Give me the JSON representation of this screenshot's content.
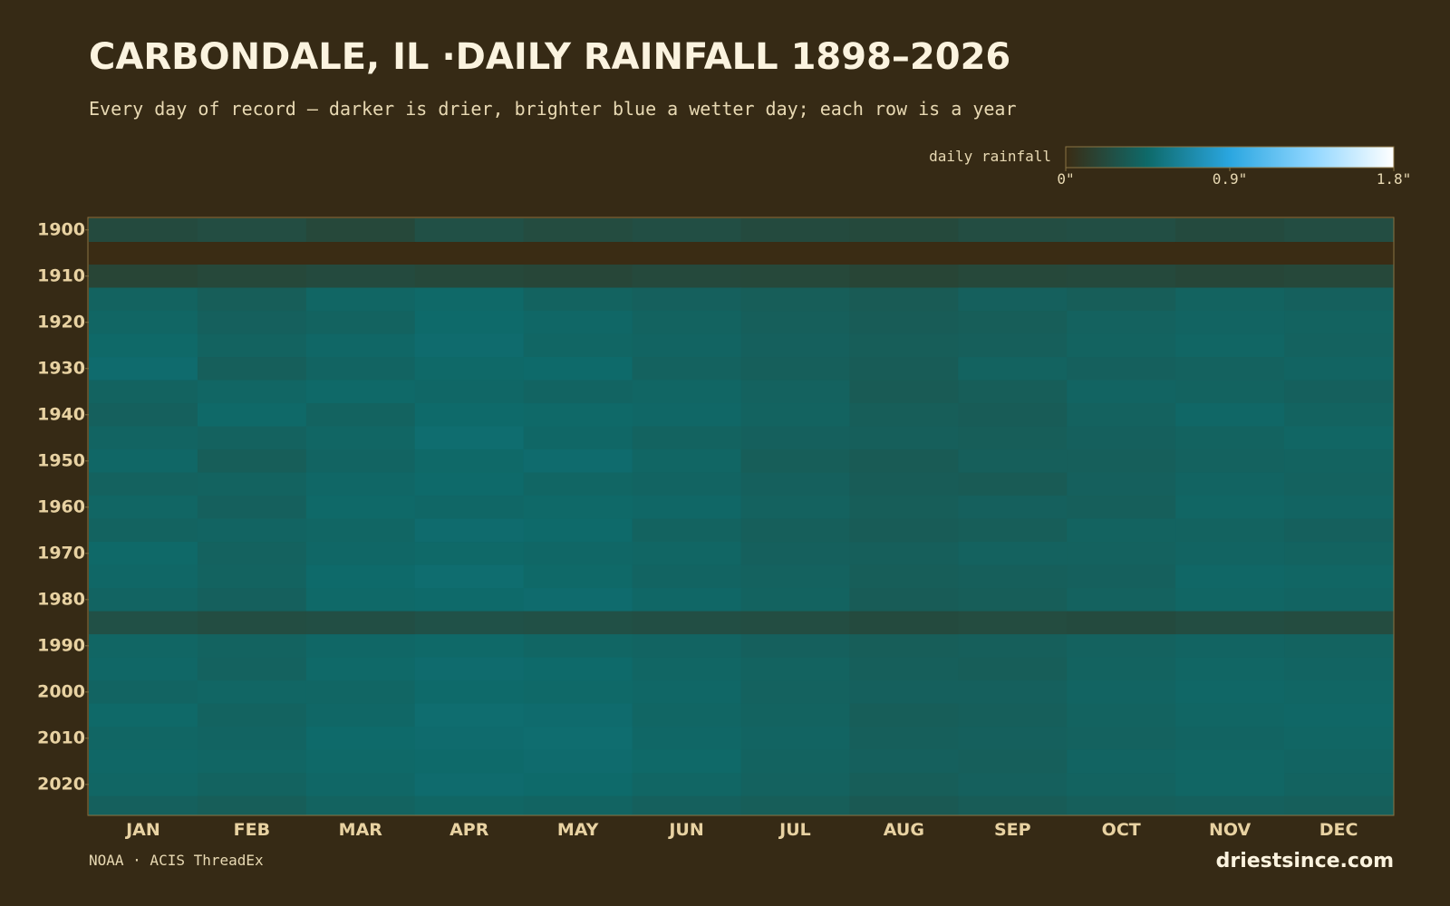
{
  "chart_data": {
    "type": "heatmap",
    "title": "CARBONDALE, IL ·DAILY RAINFALL 1898–2026",
    "subtitle": "Every day of record — darker is drier, brighter blue a wetter day; each row is a year",
    "legend_title": "daily rainfall",
    "colorscale": [
      "#3a2c14",
      "#0e6a6a",
      "#2aa6e0",
      "#8fd6ff",
      "#ffffff"
    ],
    "clim": [
      0,
      1.8
    ],
    "cticks": [
      {
        "value": 0,
        "label": "0\""
      },
      {
        "value": 0.9,
        "label": "0.9\""
      },
      {
        "value": 1.8,
        "label": "1.8\""
      }
    ],
    "categories": [
      "JAN",
      "FEB",
      "MAR",
      "APR",
      "MAY",
      "JUN",
      "JUL",
      "AUG",
      "SEP",
      "OCT",
      "NOV",
      "DEC"
    ],
    "row_starts": [
      1898,
      1903,
      1908,
      1913,
      1918,
      1923,
      1928,
      1933,
      1938,
      1943,
      1948,
      1953,
      1958,
      1963,
      1968,
      1973,
      1978,
      1983,
      1988,
      1993,
      1998,
      2003,
      2008,
      2013,
      2018,
      2023
    ],
    "ylim": [
      1898,
      2027
    ],
    "yticks": [
      1900,
      1910,
      1920,
      1930,
      1940,
      1950,
      1960,
      1970,
      1980,
      1990,
      2000,
      2010,
      2020
    ],
    "values": [
      [
        0.22,
        0.24,
        0.2,
        0.26,
        0.23,
        0.25,
        0.22,
        0.21,
        0.24,
        0.25,
        0.22,
        0.24
      ],
      [
        null,
        null,
        null,
        null,
        null,
        null,
        null,
        null,
        null,
        null,
        null,
        null
      ],
      [
        0.18,
        0.2,
        0.22,
        0.2,
        0.19,
        0.21,
        0.2,
        0.18,
        0.2,
        0.21,
        0.19,
        0.2
      ],
      [
        0.4,
        0.36,
        0.42,
        0.44,
        0.4,
        0.38,
        0.36,
        0.34,
        0.38,
        0.36,
        0.4,
        0.38
      ],
      [
        0.42,
        0.38,
        0.4,
        0.45,
        0.43,
        0.4,
        0.37,
        0.35,
        0.36,
        0.39,
        0.41,
        0.4
      ],
      [
        0.44,
        0.4,
        0.43,
        0.46,
        0.42,
        0.41,
        0.38,
        0.36,
        0.37,
        0.4,
        0.42,
        0.39
      ],
      [
        0.46,
        0.37,
        0.41,
        0.44,
        0.45,
        0.39,
        0.37,
        0.35,
        0.4,
        0.38,
        0.39,
        0.41
      ],
      [
        0.4,
        0.42,
        0.44,
        0.43,
        0.41,
        0.42,
        0.39,
        0.34,
        0.36,
        0.41,
        0.4,
        0.38
      ],
      [
        0.38,
        0.44,
        0.4,
        0.45,
        0.44,
        0.43,
        0.4,
        0.36,
        0.35,
        0.39,
        0.43,
        0.4
      ],
      [
        0.41,
        0.39,
        0.42,
        0.47,
        0.43,
        0.4,
        0.38,
        0.37,
        0.36,
        0.38,
        0.4,
        0.42
      ],
      [
        0.43,
        0.36,
        0.41,
        0.44,
        0.46,
        0.42,
        0.36,
        0.34,
        0.37,
        0.37,
        0.39,
        0.4
      ],
      [
        0.39,
        0.4,
        0.43,
        0.45,
        0.42,
        0.41,
        0.38,
        0.35,
        0.34,
        0.38,
        0.41,
        0.39
      ],
      [
        0.42,
        0.38,
        0.44,
        0.43,
        0.44,
        0.43,
        0.39,
        0.36,
        0.38,
        0.37,
        0.42,
        0.41
      ],
      [
        0.4,
        0.41,
        0.42,
        0.46,
        0.45,
        0.4,
        0.37,
        0.35,
        0.36,
        0.4,
        0.4,
        0.38
      ],
      [
        0.44,
        0.39,
        0.43,
        0.44,
        0.43,
        0.42,
        0.38,
        0.37,
        0.39,
        0.39,
        0.41,
        0.4
      ],
      [
        0.43,
        0.4,
        0.45,
        0.47,
        0.44,
        0.41,
        0.39,
        0.36,
        0.37,
        0.38,
        0.43,
        0.42
      ],
      [
        0.41,
        0.38,
        0.44,
        0.45,
        0.46,
        0.43,
        0.4,
        0.35,
        0.36,
        0.39,
        0.42,
        0.41
      ],
      [
        0.26,
        0.24,
        0.25,
        0.27,
        0.26,
        0.25,
        0.24,
        0.22,
        0.23,
        0.22,
        0.24,
        0.23
      ],
      [
        0.42,
        0.4,
        0.43,
        0.44,
        0.42,
        0.41,
        0.38,
        0.36,
        0.37,
        0.39,
        0.41,
        0.4
      ],
      [
        0.43,
        0.39,
        0.44,
        0.46,
        0.45,
        0.42,
        0.4,
        0.37,
        0.36,
        0.4,
        0.42,
        0.41
      ],
      [
        0.41,
        0.42,
        0.42,
        0.45,
        0.44,
        0.43,
        0.39,
        0.38,
        0.38,
        0.41,
        0.43,
        0.42
      ],
      [
        0.44,
        0.4,
        0.43,
        0.47,
        0.46,
        0.42,
        0.4,
        0.36,
        0.37,
        0.4,
        0.42,
        0.43
      ],
      [
        0.42,
        0.41,
        0.45,
        0.46,
        0.47,
        0.43,
        0.41,
        0.37,
        0.38,
        0.39,
        0.41,
        0.42
      ],
      [
        0.43,
        0.42,
        0.44,
        0.45,
        0.46,
        0.44,
        0.4,
        0.38,
        0.37,
        0.41,
        0.42,
        0.41
      ],
      [
        0.42,
        0.4,
        0.43,
        0.46,
        0.45,
        0.42,
        0.39,
        0.36,
        0.38,
        0.4,
        0.42,
        0.4
      ],
      [
        0.38,
        0.36,
        0.4,
        0.42,
        0.41,
        0.38,
        0.36,
        0.33,
        0.35,
        0.37,
        0.38,
        0.37
      ]
    ],
    "source": "NOAA · ACIS ThreadEx",
    "brand": "driestsince.com"
  }
}
